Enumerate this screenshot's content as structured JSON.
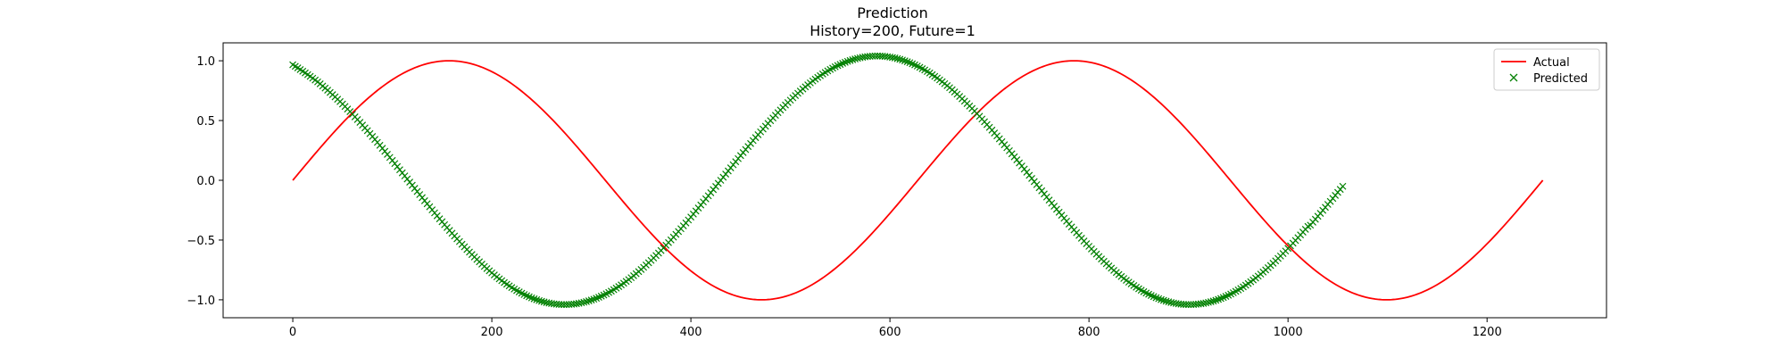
{
  "chart_data": {
    "type": "line",
    "title": "Prediction",
    "subtitle": "History=200, Future=1",
    "xlabel": "",
    "ylabel": "",
    "xlim": [
      -70,
      1320
    ],
    "ylim": [
      -1.15,
      1.15
    ],
    "xticks": [
      0,
      200,
      400,
      600,
      800,
      1000,
      1200
    ],
    "xtick_labels": [
      "0",
      "200",
      "400",
      "600",
      "800",
      "1000",
      "1200"
    ],
    "yticks": [
      1.0,
      0.5,
      0.0,
      -0.5,
      -1.0
    ],
    "ytick_labels": [
      "1.0",
      "0.5",
      "0.0",
      "−0.5",
      "−1.0"
    ],
    "grid": false,
    "legend_position": "top-right",
    "series": [
      {
        "name": "Actual",
        "style": "line",
        "color": "#ff0000",
        "x_range": [
          0,
          1257
        ],
        "description_function": "sin(2*pi*x/628)",
        "x": [
          0,
          50,
          100,
          157,
          200,
          250,
          314,
          350,
          400,
          471,
          500,
          550,
          628,
          700,
          785,
          850,
          900,
          942,
          1000,
          1050,
          1100,
          1150,
          1200,
          1257
        ],
        "y": [
          0.0,
          0.48,
          0.84,
          1.0,
          0.91,
          0.59,
          0.0,
          -0.35,
          -0.77,
          -1.0,
          -0.96,
          -0.73,
          0.0,
          0.63,
          1.0,
          0.72,
          0.31,
          0.0,
          -0.48,
          -0.85,
          -1.0,
          -0.87,
          -0.51,
          0.0
        ]
      },
      {
        "name": "Predicted",
        "style": "marker-x",
        "color": "#008000",
        "x_range": [
          0,
          1057
        ],
        "x": [
          0,
          50,
          100,
          150,
          200,
          271,
          300,
          350,
          400,
          450,
          500,
          550,
          585,
          650,
          700,
          750,
          800,
          850,
          899,
          950,
          1000,
          1057
        ],
        "y": [
          0.98,
          0.67,
          0.17,
          -0.37,
          -0.8,
          -1.03,
          -0.99,
          -0.8,
          -0.44,
          0.04,
          0.51,
          0.89,
          1.06,
          0.88,
          0.45,
          -0.07,
          -0.55,
          -0.91,
          -1.03,
          -0.94,
          -0.61,
          -0.05
        ]
      }
    ]
  }
}
